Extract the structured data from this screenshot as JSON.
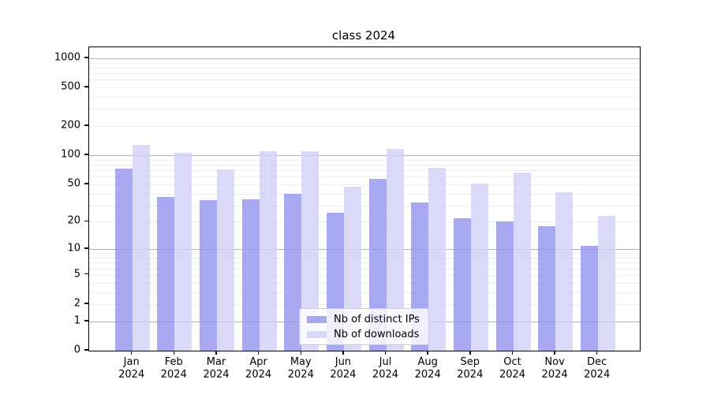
{
  "title": "class 2024",
  "chart_data": {
    "type": "bar",
    "title": "class 2024",
    "categories": [
      "Jan",
      "Feb",
      "Mar",
      "Apr",
      "May",
      "Jun",
      "Jul",
      "Aug",
      "Sep",
      "Oct",
      "Nov",
      "Dec"
    ],
    "category_year": "2024",
    "series": [
      {
        "name": "Nb of distinct IPs",
        "color": "rgb(148,148,238)",
        "values": [
          73,
          37,
          34,
          35,
          40,
          25,
          57,
          32,
          22,
          20,
          18,
          11
        ]
      },
      {
        "name": "Nb of downloads",
        "color": "rgb(209,209,246)",
        "values": [
          127,
          107,
          71,
          111,
          111,
          47,
          117,
          74,
          51,
          66,
          41,
          23
        ]
      }
    ],
    "y_scale": "log10(1+x)",
    "y_tick_labels": [
      0,
      1,
      2,
      5,
      10,
      20,
      50,
      100,
      200,
      500,
      1000
    ],
    "y_major_gridlines": [
      1,
      10,
      100,
      1000
    ],
    "y_minor_gridlines": [
      2,
      3,
      4,
      5,
      6,
      7,
      8,
      9,
      20,
      30,
      40,
      50,
      60,
      70,
      80,
      90,
      200,
      300,
      400,
      500,
      600,
      700,
      800,
      900
    ],
    "ylim": [
      0,
      1300
    ],
    "grid": true,
    "legend_position": "lower center",
    "xlabel": "",
    "ylabel": ""
  },
  "colors": {
    "background": "#ffffff",
    "axis": "#000000",
    "major_grid": "#b3b3b3",
    "minor_grid": "#ececec"
  }
}
